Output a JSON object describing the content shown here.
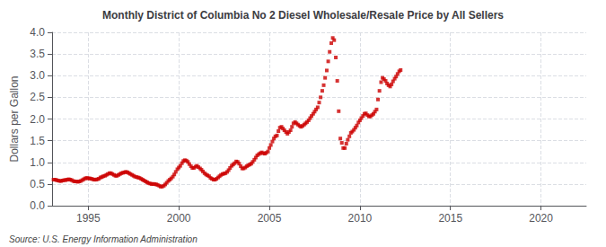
{
  "chart_data": {
    "type": "scatter",
    "title": "Monthly District of Columbia No 2 Diesel Wholesale/Resale Price by All Sellers",
    "ylabel": "Dollars per Gallon",
    "annotations": [
      "Source: U.S. Energy Information Administration"
    ],
    "color": "#cc0000",
    "marker": "square",
    "grid": true,
    "xlim": [
      1993.0,
      2022.5
    ],
    "xticks": [
      1995,
      2000,
      2005,
      2010,
      2015,
      2020
    ],
    "ylim": [
      0.0,
      4.0
    ],
    "yticks": [
      {
        "value": 0,
        "label": "0.0"
      },
      0.5,
      {
        "value": 1,
        "label": "1.0"
      },
      1.5,
      {
        "value": 2,
        "label": "2.0"
      },
      2.5,
      {
        "value": 3,
        "label": "3.0"
      },
      3.5,
      {
        "value": 4,
        "label": "4.0"
      }
    ],
    "x": [
      1993.08,
      1993.17,
      1993.25,
      1993.33,
      1993.42,
      1993.5,
      1993.58,
      1993.67,
      1993.75,
      1993.83,
      1993.92,
      1994.0,
      1994.08,
      1994.17,
      1994.25,
      1994.33,
      1994.42,
      1994.5,
      1994.58,
      1994.67,
      1994.75,
      1994.83,
      1994.92,
      1995.0,
      1995.08,
      1995.17,
      1995.25,
      1995.33,
      1995.42,
      1995.5,
      1995.58,
      1995.67,
      1995.75,
      1995.83,
      1995.92,
      1996.0,
      1996.08,
      1996.17,
      1996.25,
      1996.33,
      1996.42,
      1996.5,
      1996.58,
      1996.67,
      1996.75,
      1996.83,
      1996.92,
      1997.0,
      1997.08,
      1997.17,
      1997.25,
      1997.33,
      1997.42,
      1997.5,
      1997.58,
      1997.67,
      1997.75,
      1997.83,
      1997.92,
      1998.0,
      1998.08,
      1998.17,
      1998.25,
      1998.33,
      1998.42,
      1998.5,
      1998.58,
      1998.67,
      1998.75,
      1998.83,
      1998.92,
      1999.0,
      1999.08,
      1999.17,
      1999.25,
      1999.33,
      1999.42,
      1999.5,
      1999.58,
      1999.67,
      1999.75,
      1999.83,
      1999.92,
      2000.0,
      2000.08,
      2000.17,
      2000.25,
      2000.33,
      2000.42,
      2000.5,
      2000.58,
      2000.67,
      2000.75,
      2000.83,
      2000.92,
      2001.0,
      2001.08,
      2001.17,
      2001.25,
      2001.33,
      2001.42,
      2001.5,
      2001.58,
      2001.67,
      2001.75,
      2001.83,
      2001.92,
      2002.0,
      2002.08,
      2002.17,
      2002.25,
      2002.33,
      2002.42,
      2002.5,
      2002.58,
      2002.67,
      2002.75,
      2002.83,
      2002.92,
      2003.0,
      2003.08,
      2003.17,
      2003.25,
      2003.33,
      2003.42,
      2003.5,
      2003.58,
      2003.67,
      2003.75,
      2003.83,
      2003.92,
      2004.0,
      2004.08,
      2004.17,
      2004.25,
      2004.33,
      2004.42,
      2004.5,
      2004.58,
      2004.67,
      2004.75,
      2004.83,
      2004.92,
      2005.0,
      2005.08,
      2005.17,
      2005.25,
      2005.33,
      2005.42,
      2005.5,
      2005.58,
      2005.67,
      2005.75,
      2005.83,
      2005.92,
      2006.0,
      2006.08,
      2006.17,
      2006.25,
      2006.33,
      2006.42,
      2006.5,
      2006.58,
      2006.67,
      2006.75,
      2006.83,
      2006.92,
      2007.0,
      2007.08,
      2007.17,
      2007.25,
      2007.33,
      2007.42,
      2007.5,
      2007.58,
      2007.67,
      2007.75,
      2007.83,
      2007.92,
      2008.0,
      2008.08,
      2008.17,
      2008.25,
      2008.33,
      2008.42,
      2008.5,
      2008.58,
      2008.67,
      2008.75,
      2008.83,
      2008.92,
      2009.0,
      2009.08,
      2009.17,
      2009.25,
      2009.33,
      2009.42,
      2009.5,
      2009.58,
      2009.67,
      2009.75,
      2009.83,
      2009.92,
      2010.0,
      2010.08,
      2010.17,
      2010.25,
      2010.33,
      2010.42,
      2010.5,
      2010.58,
      2010.67,
      2010.75,
      2010.83,
      2010.92,
      2011.0,
      2011.08,
      2011.17,
      2011.25,
      2011.33,
      2011.42,
      2011.5,
      2011.58,
      2011.67,
      2011.75,
      2011.83,
      2011.92,
      2012.0,
      2012.08,
      2012.17,
      2012.25
    ],
    "values": [
      0.6,
      0.6,
      0.59,
      0.58,
      0.57,
      0.57,
      0.58,
      0.59,
      0.59,
      0.6,
      0.61,
      0.6,
      0.59,
      0.57,
      0.56,
      0.56,
      0.55,
      0.56,
      0.57,
      0.59,
      0.61,
      0.63,
      0.64,
      0.63,
      0.63,
      0.62,
      0.61,
      0.6,
      0.6,
      0.61,
      0.62,
      0.65,
      0.66,
      0.68,
      0.69,
      0.71,
      0.73,
      0.75,
      0.75,
      0.73,
      0.71,
      0.69,
      0.69,
      0.71,
      0.73,
      0.75,
      0.76,
      0.77,
      0.78,
      0.77,
      0.75,
      0.73,
      0.71,
      0.69,
      0.67,
      0.66,
      0.65,
      0.64,
      0.62,
      0.6,
      0.58,
      0.56,
      0.54,
      0.52,
      0.51,
      0.5,
      0.5,
      0.5,
      0.49,
      0.48,
      0.46,
      0.44,
      0.44,
      0.46,
      0.49,
      0.53,
      0.57,
      0.6,
      0.63,
      0.67,
      0.72,
      0.78,
      0.84,
      0.88,
      0.92,
      0.98,
      1.03,
      1.05,
      1.04,
      1.01,
      0.96,
      0.91,
      0.87,
      0.87,
      0.9,
      0.92,
      0.89,
      0.86,
      0.83,
      0.79,
      0.75,
      0.72,
      0.7,
      0.68,
      0.64,
      0.62,
      0.6,
      0.6,
      0.62,
      0.65,
      0.68,
      0.71,
      0.73,
      0.74,
      0.75,
      0.78,
      0.82,
      0.87,
      0.92,
      0.95,
      0.98,
      1.02,
      1.01,
      0.97,
      0.91,
      0.86,
      0.86,
      0.88,
      0.91,
      0.93,
      0.95,
      0.97,
      1.01,
      1.06,
      1.11,
      1.16,
      1.19,
      1.21,
      1.23,
      1.21,
      1.2,
      1.22,
      1.25,
      1.33,
      1.4,
      1.48,
      1.55,
      1.6,
      1.62,
      1.72,
      1.8,
      1.82,
      1.78,
      1.74,
      1.7,
      1.66,
      1.7,
      1.74,
      1.82,
      1.9,
      1.93,
      1.9,
      1.87,
      1.84,
      1.82,
      1.84,
      1.87,
      1.9,
      1.93,
      1.97,
      2.02,
      2.07,
      2.12,
      2.17,
      2.22,
      2.27,
      2.38,
      2.5,
      2.65,
      2.78,
      2.95,
      3.12,
      3.33,
      3.55,
      3.75,
      3.87,
      3.82,
      3.42,
      2.88,
      2.18,
      1.55,
      1.45,
      1.33,
      1.33,
      1.43,
      1.52,
      1.6,
      1.68,
      1.71,
      1.75,
      1.8,
      1.85,
      1.92,
      1.97,
      2.02,
      2.07,
      2.12,
      2.13,
      2.09,
      2.06,
      2.06,
      2.09,
      2.12,
      2.17,
      2.22,
      2.45,
      2.65,
      2.85,
      2.95,
      2.92,
      2.88,
      2.82,
      2.78,
      2.75,
      2.8,
      2.87,
      2.93,
      2.98,
      3.04,
      3.1,
      3.13
    ]
  }
}
